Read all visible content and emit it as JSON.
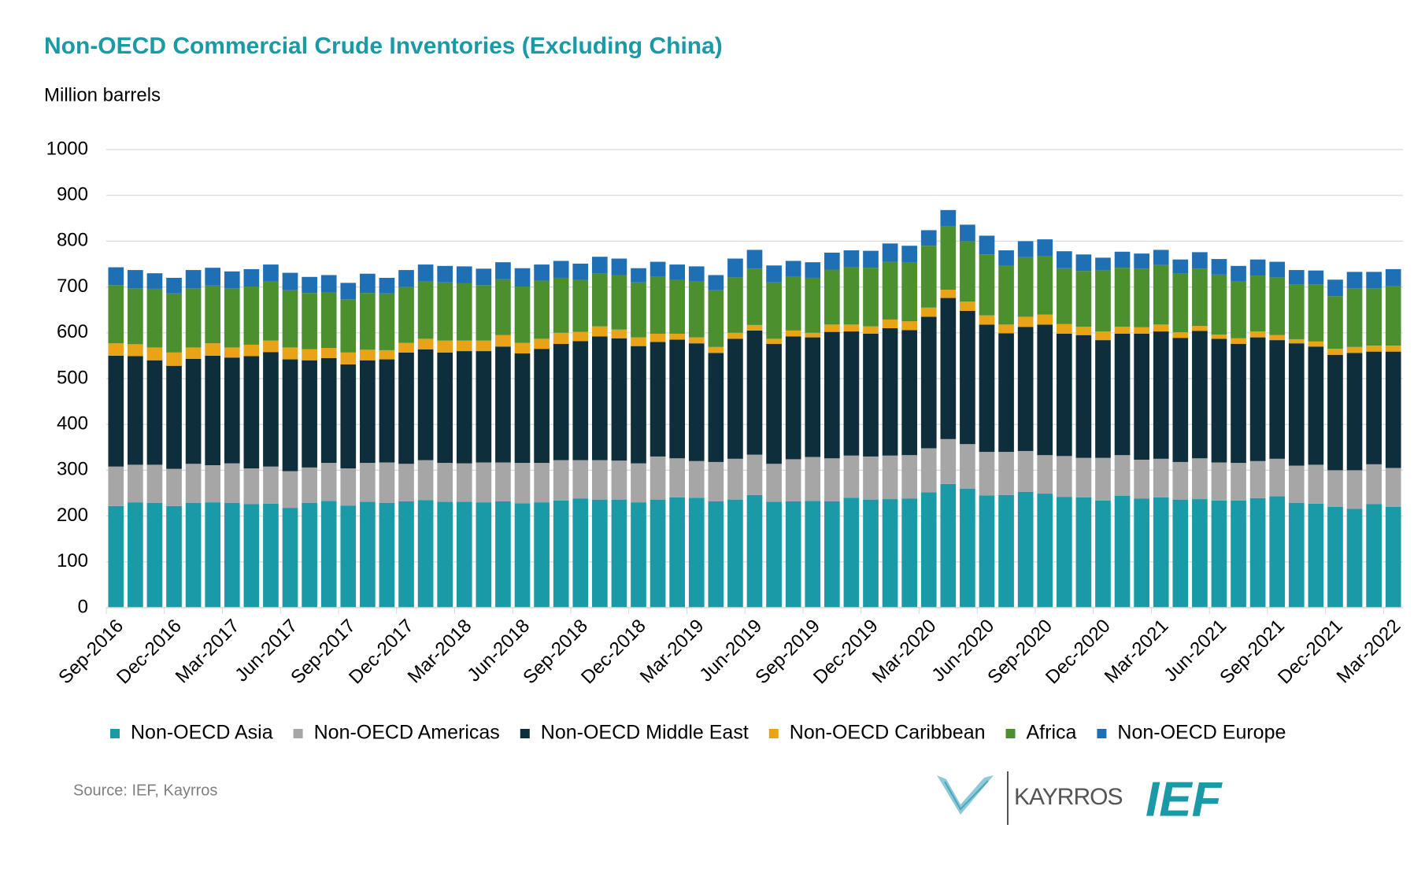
{
  "chart_data": {
    "type": "stacked-bar",
    "title": "Non-OECD Commercial Crude Inventories (Excluding China)",
    "y_label": "Million barrels",
    "source": "Source: IEF, Kayrros",
    "logos": [
      "KAYRROS",
      "IEF"
    ],
    "categories": [
      "Sep-2016",
      null,
      null,
      "Dec-2016",
      null,
      null,
      "Mar-2017",
      null,
      null,
      "Jun-2017",
      null,
      null,
      "Sep-2017",
      null,
      null,
      "Dec-2017",
      null,
      null,
      "Mar-2018",
      null,
      null,
      "Jun-2018",
      null,
      null,
      "Sep-2018",
      null,
      null,
      "Dec-2018",
      null,
      null,
      "Mar-2019",
      null,
      null,
      "Jun-2019",
      null,
      null,
      "Sep-2019",
      null,
      null,
      "Dec-2019",
      null,
      null,
      "Mar-2020",
      null,
      null,
      "Jun-2020",
      null,
      null,
      "Sep-2020",
      null,
      null,
      "Dec-2020",
      null,
      null,
      "Mar-2021",
      null,
      null,
      "Jun-2021",
      null,
      null,
      "Sep-2021",
      null,
      null,
      "Dec-2021",
      null,
      null,
      "Mar-2022"
    ],
    "series": [
      {
        "name": "Non-OECD Asia",
        "color": "#1a9aa6",
        "values": [
          222,
          230,
          229,
          222,
          229,
          230,
          229,
          226,
          227,
          218,
          229,
          233,
          223,
          231,
          229,
          232,
          235,
          231,
          231,
          230,
          232,
          228,
          230,
          234,
          238,
          236,
          236,
          230,
          236,
          241,
          240,
          232,
          236,
          246,
          231,
          232,
          233,
          232,
          240,
          236,
          237,
          238,
          252,
          270,
          260,
          245,
          246,
          253,
          249,
          242,
          241,
          234,
          244,
          238,
          241,
          236,
          237,
          234,
          234,
          239,
          243,
          229,
          227,
          220,
          216,
          226,
          220
        ]
      },
      {
        "name": "Non-OECD Americas",
        "color": "#a6a6a6",
        "values": [
          86,
          82,
          83,
          81,
          85,
          81,
          86,
          78,
          81,
          80,
          77,
          83,
          81,
          85,
          88,
          82,
          87,
          85,
          84,
          87,
          85,
          88,
          86,
          88,
          84,
          86,
          85,
          85,
          94,
          85,
          80,
          86,
          89,
          88,
          83,
          92,
          96,
          94,
          92,
          94,
          95,
          95,
          96,
          98,
          97,
          95,
          94,
          89,
          84,
          89,
          86,
          93,
          89,
          85,
          84,
          82,
          89,
          83,
          82,
          81,
          82,
          81,
          85,
          80,
          84,
          87,
          85
        ]
      },
      {
        "name": "Non-OECD Middle East",
        "color": "#0d2e3a",
        "values": [
          242,
          237,
          228,
          225,
          229,
          239,
          231,
          245,
          250,
          244,
          234,
          229,
          227,
          224,
          225,
          243,
          242,
          241,
          245,
          243,
          253,
          239,
          249,
          254,
          260,
          270,
          267,
          256,
          250,
          259,
          257,
          238,
          262,
          271,
          262,
          268,
          261,
          276,
          271,
          268,
          278,
          273,
          287,
          308,
          291,
          278,
          259,
          271,
          285,
          267,
          268,
          257,
          265,
          275,
          278,
          271,
          278,
          270,
          260,
          270,
          259,
          267,
          258,
          252,
          256,
          246,
          254
        ]
      },
      {
        "name": "Non-OECD Caribbean",
        "color": "#e8a317",
        "values": [
          27,
          26,
          28,
          29,
          25,
          27,
          22,
          25,
          25,
          26,
          24,
          22,
          26,
          23,
          20,
          21,
          23,
          26,
          23,
          23,
          25,
          23,
          22,
          24,
          20,
          22,
          19,
          19,
          18,
          13,
          13,
          13,
          13,
          12,
          11,
          13,
          10,
          16,
          15,
          16,
          19,
          19,
          20,
          18,
          20,
          20,
          19,
          22,
          22,
          21,
          18,
          19,
          15,
          14,
          15,
          12,
          11,
          9,
          12,
          13,
          11,
          9,
          11,
          13,
          13,
          13,
          13
        ]
      },
      {
        "name": "Africa",
        "color": "#4b8f2f",
        "values": [
          127,
          122,
          128,
          129,
          129,
          126,
          129,
          127,
          129,
          125,
          123,
          122,
          116,
          124,
          124,
          122,
          125,
          127,
          125,
          121,
          122,
          123,
          127,
          120,
          113,
          115,
          119,
          120,
          124,
          117,
          122,
          124,
          121,
          123,
          123,
          117,
          120,
          120,
          126,
          128,
          126,
          128,
          135,
          138,
          132,
          133,
          128,
          130,
          128,
          122,
          122,
          133,
          129,
          128,
          130,
          128,
          125,
          131,
          124,
          122,
          126,
          119,
          125,
          115,
          128,
          125,
          130
        ]
      },
      {
        "name": "Non-OECD Europe",
        "color": "#1f6fb5",
        "values": [
          39,
          40,
          34,
          34,
          40,
          39,
          37,
          38,
          37,
          38,
          35,
          37,
          36,
          42,
          34,
          37,
          37,
          36,
          37,
          36,
          37,
          40,
          35,
          37,
          36,
          37,
          36,
          31,
          33,
          34,
          33,
          33,
          41,
          41,
          37,
          35,
          34,
          37,
          36,
          37,
          40,
          37,
          34,
          36,
          36,
          41,
          34,
          35,
          36,
          37,
          36,
          28,
          35,
          33,
          33,
          31,
          36,
          34,
          34,
          35,
          34,
          32,
          30,
          36,
          36,
          36,
          37
        ]
      }
    ],
    "ylim": [
      0,
      1000
    ],
    "yticks": [
      0,
      100,
      200,
      300,
      400,
      500,
      600,
      700,
      800,
      900,
      1000
    ],
    "grid": true
  }
}
